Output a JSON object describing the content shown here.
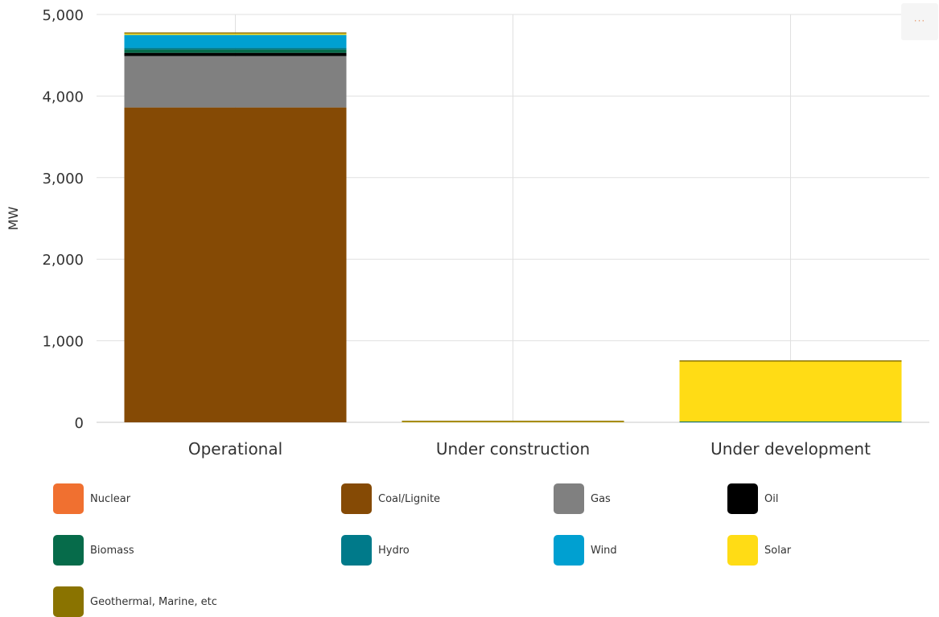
{
  "chart_data": {
    "type": "bar",
    "stacked": true,
    "ylabel": "MW",
    "ylim": [
      0,
      5000
    ],
    "yticks": [
      "0",
      "1,000",
      "2,000",
      "3,000",
      "4,000",
      "5,000"
    ],
    "ytick_values": [
      0,
      1000,
      2000,
      3000,
      4000,
      5000
    ],
    "grid": true,
    "legend_position": "bottom",
    "categories": [
      "Operational",
      "Under construction",
      "Under development"
    ],
    "series": [
      {
        "name": "Nuclear",
        "color": "#f07030",
        "values": [
          0,
          0,
          0
        ]
      },
      {
        "name": "Coal/Lignite",
        "color": "#854a05",
        "values": [
          3860,
          0,
          0
        ]
      },
      {
        "name": "Gas",
        "color": "#808080",
        "values": [
          630,
          0,
          0
        ]
      },
      {
        "name": "Oil",
        "color": "#000000",
        "values": [
          40,
          0,
          0
        ]
      },
      {
        "name": "Biomass",
        "color": "#066b4a",
        "values": [
          40,
          0,
          5
        ]
      },
      {
        "name": "Hydro",
        "color": "#007a8a",
        "values": [
          20,
          0,
          5
        ]
      },
      {
        "name": "Wind",
        "color": "#00a0d1",
        "values": [
          160,
          0,
          0
        ]
      },
      {
        "name": "Solar",
        "color": "#ffdc15",
        "values": [
          15,
          5,
          735
        ]
      },
      {
        "name": "Geothermal, Marine, etc",
        "color": "#8a7300",
        "values": [
          5,
          10,
          15
        ]
      }
    ]
  },
  "ui": {
    "menu_icon": "menu-dots-icon",
    "menu_glyph": "···"
  }
}
